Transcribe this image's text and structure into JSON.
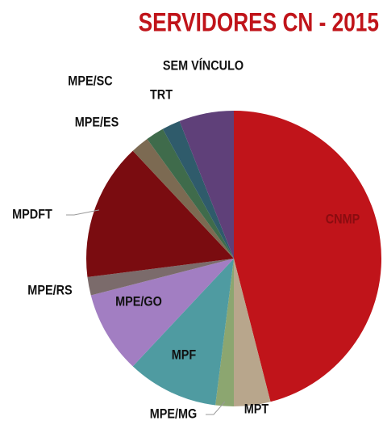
{
  "chart_data": {
    "type": "pie",
    "title": "SERVIDORES CN - 2015",
    "categories": [
      "CNMP",
      "MPT",
      "MPE/MG",
      "MPF",
      "MPE/GO",
      "MPE/RS",
      "MPDFT",
      "MPE/ES",
      "MPE/SC",
      "TRT",
      "SEM VÍNCULO"
    ],
    "values": [
      46,
      4,
      2,
      10,
      9,
      2,
      15,
      2,
      2,
      2,
      6
    ],
    "colors": [
      "#c0141a",
      "#b8a68c",
      "#8ca670",
      "#4f9ba1",
      "#a27ec2",
      "#7b6b6b",
      "#7a0c10",
      "#7c6a52",
      "#3f6b4b",
      "#2f5b6b",
      "#5f4079"
    ]
  }
}
